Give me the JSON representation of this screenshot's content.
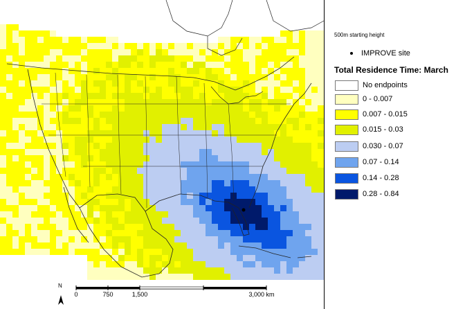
{
  "legend": {
    "subtitle": "500m starting height",
    "site_label": "IMPROVE site",
    "title": "Total Residence Time: March",
    "classes": [
      {
        "label": "No endpoints",
        "color": "#ffffff"
      },
      {
        "label": "0 - 0.007",
        "color": "#ffffbf"
      },
      {
        "label": "0.007 - 0.015",
        "color": "#ffff00"
      },
      {
        "label": "0.015 - 0.03",
        "color": "#e1f000"
      },
      {
        "label": "0.030 - 0.07",
        "color": "#bccdf2"
      },
      {
        "label": "0.07 - 0.14",
        "color": "#6fa4ee"
      },
      {
        "label": "0.14 - 0.28",
        "color": "#0a55e0"
      },
      {
        "label": "0.28 - 0.84",
        "color": "#001a6b"
      }
    ]
  },
  "scale": {
    "north": "N",
    "ticks": [
      "0",
      "750",
      "1,500",
      "3,000 km"
    ]
  },
  "colors": {
    "boundary": "#000000",
    "site_marker": "#000000"
  }
}
